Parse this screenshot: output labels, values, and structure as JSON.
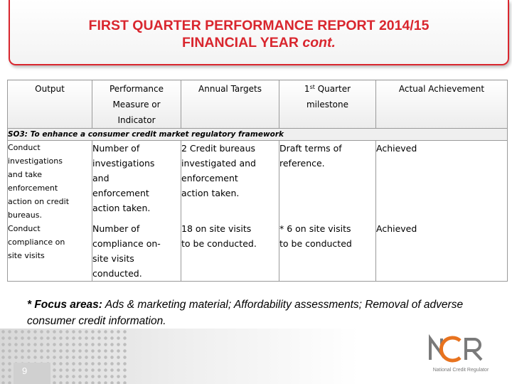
{
  "header": {
    "title_line1": "FIRST QUARTER PERFORMANCE REPORT 2014/15",
    "title_line2": "FINANCIAL YEAR ",
    "title_cont": "cont."
  },
  "table": {
    "headers": {
      "output": "Output",
      "performance": [
        "Performance",
        "Measure or",
        "Indicator"
      ],
      "annual": "Annual Targets",
      "milestone_num": "1",
      "milestone_sup": "st",
      "milestone_rest": " Quarter",
      "milestone_line2": "milestone",
      "actual": "Actual Achievement"
    },
    "section": "SO3: To enhance a consumer credit market regulatory framework",
    "output_lines": [
      "Conduct",
      "investigations",
      "and take",
      "enforcement",
      "action on credit",
      "bureaus.",
      "Conduct",
      "compliance on",
      "site visits"
    ],
    "rows": [
      {
        "measure": [
          "Number of",
          "investigations",
          "and",
          "enforcement",
          "action taken."
        ],
        "annual": [
          "2 Credit bureaus",
          "investigated and",
          "enforcement",
          "action taken."
        ],
        "milestone": [
          "Draft terms of",
          "reference."
        ],
        "actual": "Achieved"
      },
      {
        "measure": [
          "Number of",
          "compliance on-",
          "site visits",
          "conducted."
        ],
        "annual": [
          "18 on site visits",
          "to be conducted."
        ],
        "milestone": [
          "* 6 on site visits",
          "to be conducted"
        ],
        "actual": "Achieved"
      }
    ]
  },
  "focus": {
    "label": "* Focus areas:",
    "text": " Ads & marketing material; Affordability assessments; Removal of adverse consumer credit information."
  },
  "footer": {
    "page_number": "9",
    "logo_text": "NCR",
    "logo_tagline": "National Credit Regulator"
  },
  "colors": {
    "title_red": "#d9262e",
    "logo_orange": "#e8731f",
    "logo_gray": "#7a7a7a"
  }
}
